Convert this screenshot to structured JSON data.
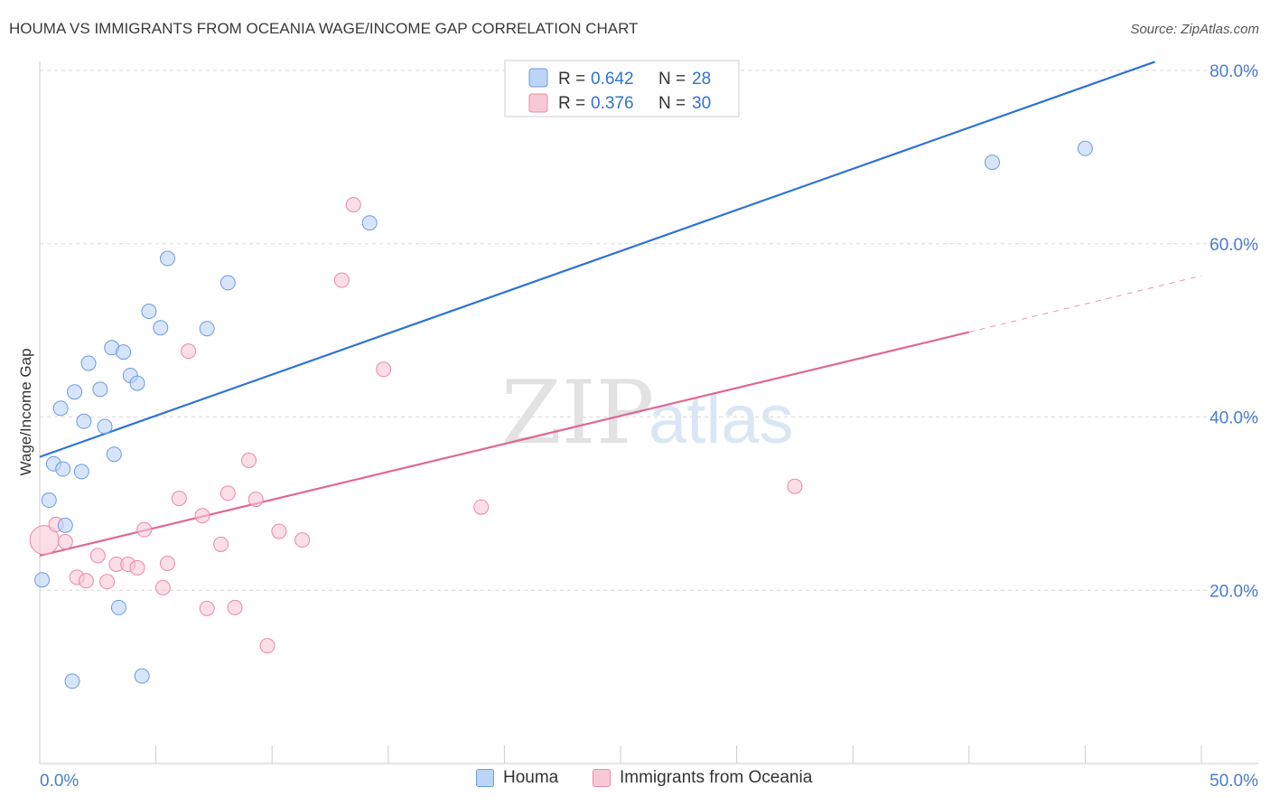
{
  "title": "HOUMA VS IMMIGRANTS FROM OCEANIA WAGE/INCOME GAP CORRELATION CHART",
  "source": "Source: ZipAtlas.com",
  "watermark": {
    "zip": "ZIP",
    "atlas": "atlas"
  },
  "colors": {
    "houma_fill": "#bcd4f6",
    "houma_stroke": "#6c9be0",
    "houma_line": "#2e73d2",
    "oceania_fill": "#f9c8d6",
    "oceania_stroke": "#e98aa6",
    "oceania_line": "#e06890",
    "tick_label": "#4a7ccf",
    "grid": "#d9d9d9"
  },
  "chart_data": {
    "type": "scatter",
    "xlabel": "",
    "ylabel": "Wage/Income Gap",
    "xlim": [
      0,
      50
    ],
    "ylim": [
      0,
      80
    ],
    "x_tick_labels": [
      {
        "value": 0,
        "label": "0.0%"
      },
      {
        "value": 50,
        "label": "50.0%"
      }
    ],
    "y_tick_labels": [
      {
        "value": 20,
        "label": "20.0%"
      },
      {
        "value": 40,
        "label": "40.0%"
      },
      {
        "value": 60,
        "label": "60.0%"
      },
      {
        "value": 80,
        "label": "80.0%"
      }
    ],
    "legend_stats": [
      {
        "r_label": "R = ",
        "r": "0.642",
        "n_label": "N = ",
        "n": "28"
      },
      {
        "r_label": "R = ",
        "r": "0.376",
        "n_label": "N = ",
        "n": "30"
      }
    ],
    "series": [
      {
        "name": "Houma",
        "trend": {
          "x": [
            0,
            48
          ],
          "y": [
            35.4,
            81.0
          ]
        },
        "points": [
          [
            0.1,
            21.2
          ],
          [
            0.4,
            30.4
          ],
          [
            0.6,
            34.6
          ],
          [
            0.9,
            41.0
          ],
          [
            1.0,
            34.0
          ],
          [
            1.1,
            27.5
          ],
          [
            1.5,
            42.9
          ],
          [
            1.4,
            9.5
          ],
          [
            1.8,
            33.7
          ],
          [
            1.9,
            39.5
          ],
          [
            2.1,
            46.2
          ],
          [
            2.6,
            43.2
          ],
          [
            2.8,
            38.9
          ],
          [
            3.1,
            48.0
          ],
          [
            3.2,
            35.7
          ],
          [
            3.4,
            18.0
          ],
          [
            3.6,
            47.5
          ],
          [
            3.9,
            44.8
          ],
          [
            4.2,
            43.9
          ],
          [
            4.4,
            10.1
          ],
          [
            4.7,
            52.2
          ],
          [
            5.2,
            50.3
          ],
          [
            5.5,
            58.3
          ],
          [
            7.2,
            50.2
          ],
          [
            8.1,
            55.5
          ],
          [
            14.2,
            62.4
          ],
          [
            41.0,
            69.4
          ],
          [
            45.0,
            71.0
          ]
        ]
      },
      {
        "name": "Immigrants from Oceania",
        "trend": {
          "x": [
            0,
            40
          ],
          "y": [
            24.0,
            49.8
          ]
        },
        "trend_dashed": {
          "x": [
            40,
            50
          ],
          "y": [
            49.8,
            56.3
          ]
        },
        "points": [
          [
            0.2,
            25.8
          ],
          [
            0.7,
            27.6
          ],
          [
            1.1,
            25.6
          ],
          [
            1.6,
            21.5
          ],
          [
            2.0,
            21.1
          ],
          [
            2.5,
            24.0
          ],
          [
            2.9,
            21.0
          ],
          [
            3.3,
            23.0
          ],
          [
            3.8,
            23.0
          ],
          [
            4.2,
            22.6
          ],
          [
            4.5,
            27.0
          ],
          [
            5.3,
            20.3
          ],
          [
            5.5,
            23.1
          ],
          [
            6.0,
            30.6
          ],
          [
            6.4,
            47.6
          ],
          [
            7.0,
            28.6
          ],
          [
            7.2,
            17.9
          ],
          [
            7.8,
            25.3
          ],
          [
            8.1,
            31.2
          ],
          [
            8.4,
            18.0
          ],
          [
            9.0,
            35.0
          ],
          [
            9.3,
            30.5
          ],
          [
            9.8,
            13.6
          ],
          [
            10.3,
            26.8
          ],
          [
            11.3,
            25.8
          ],
          [
            13.0,
            55.8
          ],
          [
            13.5,
            64.5
          ],
          [
            14.8,
            45.5
          ],
          [
            19.0,
            29.6
          ],
          [
            32.5,
            32.0
          ]
        ]
      }
    ],
    "grid": true,
    "legend_position": "top-center"
  }
}
